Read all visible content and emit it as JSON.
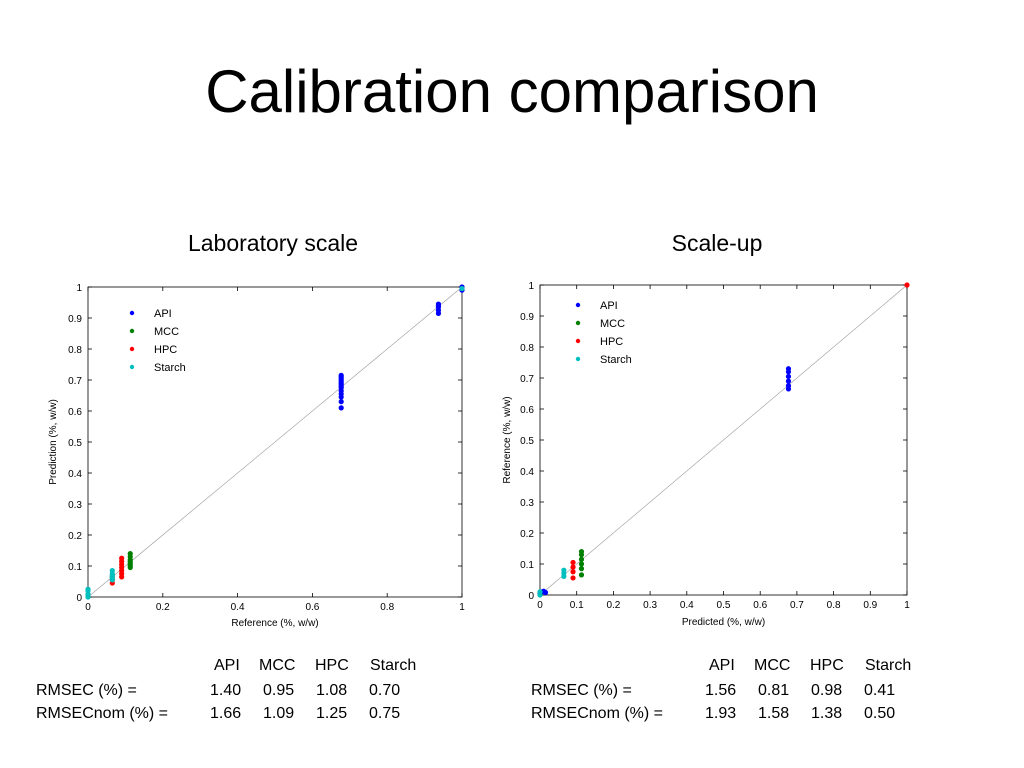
{
  "slide": {
    "title": "Calibration comparison"
  },
  "chart_data": [
    {
      "type": "scatter",
      "title": "Laboratory scale",
      "xlabel": "Reference (%, w/w)",
      "ylabel": "Prediction (%, w/w)",
      "xlim": [
        0,
        1
      ],
      "ylim": [
        0,
        1
      ],
      "x_ticks": [
        "0",
        "0.2",
        "0.4",
        "0.6",
        "0.8",
        "1"
      ],
      "y_ticks": [
        "0",
        "0.1",
        "0.2",
        "0.3",
        "0.4",
        "0.5",
        "0.6",
        "0.7",
        "0.8",
        "0.9",
        "1"
      ],
      "legend": "top-left",
      "identity_line": true,
      "series": [
        {
          "name": "API",
          "color": "#0000ff",
          "x": [
            0.677,
            0.677,
            0.677,
            0.677,
            0.677,
            0.677,
            0.677,
            0.677,
            0.677,
            0.677,
            0.677,
            0.677,
            0.677,
            0.677,
            0.937,
            0.937,
            0.937,
            0.937,
            0.937,
            1.0,
            1.0
          ],
          "y": [
            0.61,
            0.63,
            0.645,
            0.655,
            0.665,
            0.675,
            0.68,
            0.685,
            0.69,
            0.695,
            0.7,
            0.705,
            0.71,
            0.715,
            0.915,
            0.925,
            0.935,
            0.94,
            0.945,
            0.99,
            1.0
          ]
        },
        {
          "name": "MCC",
          "color": "#008000",
          "x": [
            0.113,
            0.113,
            0.113,
            0.113,
            0.113,
            0.113,
            0.113,
            0.113
          ],
          "y": [
            0.095,
            0.1,
            0.105,
            0.11,
            0.115,
            0.12,
            0.13,
            0.14
          ]
        },
        {
          "name": "HPC",
          "color": "#ff0000",
          "x": [
            0.065,
            0.065,
            0.065,
            0.09,
            0.09,
            0.09,
            0.09,
            0.09,
            0.09,
            0.09
          ],
          "y": [
            0.045,
            0.055,
            0.065,
            0.065,
            0.075,
            0.085,
            0.095,
            0.105,
            0.115,
            0.125
          ]
        },
        {
          "name": "Starch",
          "color": "#00bfbf",
          "x": [
            0.0,
            0.0,
            0.0,
            0.0,
            0.0,
            0.065,
            0.065,
            0.065,
            0.065,
            0.065,
            0.065,
            1.0
          ],
          "y": [
            0.0,
            0.005,
            0.01,
            0.02,
            0.025,
            0.055,
            0.06,
            0.065,
            0.07,
            0.075,
            0.085,
            0.995
          ]
        }
      ]
    },
    {
      "type": "scatter",
      "title": "Scale-up",
      "xlabel": "Predicted (%, w/w)",
      "ylabel": "Reference (%, w/w)",
      "xlim": [
        0,
        1
      ],
      "ylim": [
        0,
        1
      ],
      "x_ticks": [
        "0",
        "0.1",
        "0.2",
        "0.3",
        "0.4",
        "0.5",
        "0.6",
        "0.7",
        "0.8",
        "0.9",
        "1"
      ],
      "y_ticks": [
        "0",
        "0.1",
        "0.2",
        "0.3",
        "0.4",
        "0.5",
        "0.6",
        "0.7",
        "0.8",
        "0.9",
        "1"
      ],
      "legend": "top-left",
      "identity_line": true,
      "series": [
        {
          "name": "API",
          "color": "#0000ff",
          "x": [
            0.0,
            0.005,
            0.01,
            0.015,
            0.677,
            0.677,
            0.677,
            0.677,
            0.677,
            0.677
          ],
          "y": [
            0.005,
            0.01,
            0.012,
            0.008,
            0.665,
            0.675,
            0.69,
            0.705,
            0.72,
            0.73
          ]
        },
        {
          "name": "MCC",
          "color": "#008000",
          "x": [
            0.113,
            0.113,
            0.113,
            0.113,
            0.113,
            0.113
          ],
          "y": [
            0.065,
            0.085,
            0.1,
            0.115,
            0.13,
            0.14
          ]
        },
        {
          "name": "HPC",
          "color": "#ff0000",
          "x": [
            0.09,
            0.09,
            0.09,
            0.09,
            1.0
          ],
          "y": [
            0.055,
            0.075,
            0.09,
            0.105,
            1.0
          ]
        },
        {
          "name": "Starch",
          "color": "#00bfbf",
          "x": [
            0.0,
            0.0,
            0.065,
            0.065,
            0.065
          ],
          "y": [
            0.0,
            0.01,
            0.06,
            0.07,
            0.08
          ]
        }
      ]
    }
  ],
  "tables": [
    {
      "headers": [
        "API",
        "MCC",
        "HPC",
        "Starch"
      ],
      "rows": [
        {
          "label": "RMSEC  (%) =",
          "values": [
            "1.40",
            "0.95",
            "1.08",
            "0.70"
          ]
        },
        {
          "label": "RMSECnom  (%)  =",
          "values": [
            "1.66",
            "1.09",
            "1.25",
            "0.75"
          ]
        }
      ]
    },
    {
      "headers": [
        "API",
        "MCC",
        "HPC",
        "Starch"
      ],
      "rows": [
        {
          "label": "RMSEC  (%) =",
          "values": [
            "1.56",
            "0.81",
            "0.98",
            "0.41"
          ]
        },
        {
          "label": "RMSECnom  (%)  =",
          "values": [
            "1.93",
            "1.58",
            "1.38",
            "0.50"
          ]
        }
      ]
    }
  ]
}
